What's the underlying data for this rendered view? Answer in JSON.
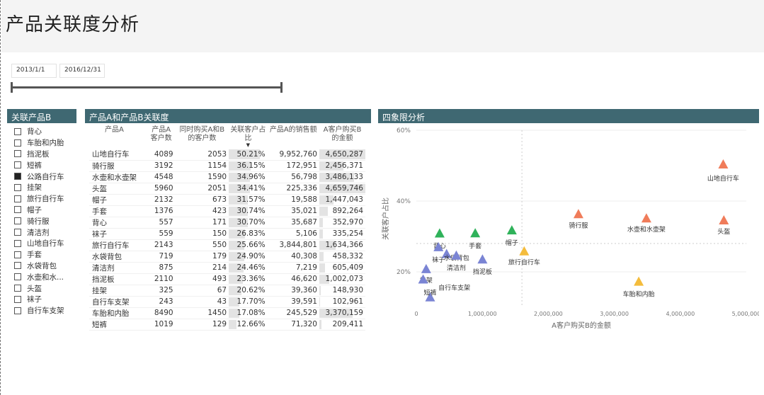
{
  "page": {
    "title": "产品关联度分析"
  },
  "date_filter": {
    "start": "2013/1/1",
    "end": "2016/12/31"
  },
  "slicer": {
    "title": "关联产品B",
    "items": [
      {
        "label": "背心",
        "checked": false
      },
      {
        "label": "车胎和内胎",
        "checked": false
      },
      {
        "label": "挡泥板",
        "checked": false
      },
      {
        "label": "短裤",
        "checked": false
      },
      {
        "label": "公路自行车",
        "checked": true
      },
      {
        "label": "挂架",
        "checked": false
      },
      {
        "label": "旅行自行车",
        "checked": false
      },
      {
        "label": "帽子",
        "checked": false
      },
      {
        "label": "骑行服",
        "checked": false
      },
      {
        "label": "清洁剂",
        "checked": false
      },
      {
        "label": "山地自行车",
        "checked": false
      },
      {
        "label": "手套",
        "checked": false
      },
      {
        "label": "水袋背包",
        "checked": false
      },
      {
        "label": "水壶和水...",
        "checked": false
      },
      {
        "label": "头盔",
        "checked": false
      },
      {
        "label": "袜子",
        "checked": false
      },
      {
        "label": "自行车支架",
        "checked": false
      }
    ]
  },
  "matrix": {
    "title": "产品A和产品B关联度",
    "columns": [
      "产品A",
      "产品A客户数",
      "同时购买A和B的客户数",
      "关联客户占比",
      "产品A的销售额",
      "A客户购买B的金额"
    ],
    "rows": [
      {
        "name": "山地自行车",
        "a": "4089",
        "ab": "2053",
        "ratio": "50.21%",
        "ratio_value": 50.21,
        "sales": "9,952,760",
        "amount": "4,650,287",
        "amount_value": 4650287
      },
      {
        "name": "骑行服",
        "a": "3192",
        "ab": "1154",
        "ratio": "36.15%",
        "ratio_value": 36.15,
        "sales": "172,951",
        "amount": "2,456,371",
        "amount_value": 2456371
      },
      {
        "name": "水壶和水壶架",
        "a": "4548",
        "ab": "1590",
        "ratio": "34.96%",
        "ratio_value": 34.96,
        "sales": "56,798",
        "amount": "3,486,133",
        "amount_value": 3486133
      },
      {
        "name": "头盔",
        "a": "5960",
        "ab": "2051",
        "ratio": "34.41%",
        "ratio_value": 34.41,
        "sales": "225,336",
        "amount": "4,659,746",
        "amount_value": 4659746
      },
      {
        "name": "帽子",
        "a": "2132",
        "ab": "673",
        "ratio": "31.57%",
        "ratio_value": 31.57,
        "sales": "19,588",
        "amount": "1,447,043",
        "amount_value": 1447043
      },
      {
        "name": "手套",
        "a": "1376",
        "ab": "423",
        "ratio": "30.74%",
        "ratio_value": 30.74,
        "sales": "35,021",
        "amount": "892,264",
        "amount_value": 892264
      },
      {
        "name": "背心",
        "a": "557",
        "ab": "171",
        "ratio": "30.70%",
        "ratio_value": 30.7,
        "sales": "35,687",
        "amount": "352,970",
        "amount_value": 352970
      },
      {
        "name": "袜子",
        "a": "559",
        "ab": "150",
        "ratio": "26.83%",
        "ratio_value": 26.83,
        "sales": "5,106",
        "amount": "335,254",
        "amount_value": 335254
      },
      {
        "name": "旅行自行车",
        "a": "2143",
        "ab": "550",
        "ratio": "25.66%",
        "ratio_value": 25.66,
        "sales": "3,844,801",
        "amount": "1,634,366",
        "amount_value": 1634366
      },
      {
        "name": "水袋背包",
        "a": "719",
        "ab": "179",
        "ratio": "24.90%",
        "ratio_value": 24.9,
        "sales": "40,308",
        "amount": "458,332",
        "amount_value": 458332
      },
      {
        "name": "清洁剂",
        "a": "875",
        "ab": "214",
        "ratio": "24.46%",
        "ratio_value": 24.46,
        "sales": "7,219",
        "amount": "605,409",
        "amount_value": 605409
      },
      {
        "name": "挡泥板",
        "a": "2110",
        "ab": "493",
        "ratio": "23.36%",
        "ratio_value": 23.36,
        "sales": "46,620",
        "amount": "1,002,073",
        "amount_value": 1002073
      },
      {
        "name": "挂架",
        "a": "325",
        "ab": "67",
        "ratio": "20.62%",
        "ratio_value": 20.62,
        "sales": "39,360",
        "amount": "148,930",
        "amount_value": 148930
      },
      {
        "name": "自行车支架",
        "a": "243",
        "ab": "43",
        "ratio": "17.70%",
        "ratio_value": 17.7,
        "sales": "39,591",
        "amount": "102,961",
        "amount_value": 102961
      },
      {
        "name": "车胎和内胎",
        "a": "8490",
        "ab": "1450",
        "ratio": "17.08%",
        "ratio_value": 17.08,
        "sales": "245,529",
        "amount": "3,370,159",
        "amount_value": 3370159
      },
      {
        "name": "短裤",
        "a": "1019",
        "ab": "129",
        "ratio": "12.66%",
        "ratio_value": 12.66,
        "sales": "71,320",
        "amount": "209,411",
        "amount_value": 209411
      }
    ]
  },
  "chart_data": {
    "type": "scatter",
    "title": "四象限分析",
    "xlabel": "A客户购买B的金额",
    "ylabel": "关联客户占比",
    "xlim": [
      0,
      5000000
    ],
    "ylim": [
      10,
      60
    ],
    "x_ticks": [
      {
        "value": 0,
        "label": "0"
      },
      {
        "value": 1000000,
        "label": "1,000,000"
      },
      {
        "value": 2000000,
        "label": "2,000,000"
      },
      {
        "value": 3000000,
        "label": "3,000,000"
      },
      {
        "value": 4000000,
        "label": "4,000,000"
      },
      {
        "value": 5000000,
        "label": "5,000,000"
      }
    ],
    "y_ticks": [
      {
        "value": 20,
        "label": "20%"
      },
      {
        "value": 40,
        "label": "40%"
      },
      {
        "value": 60,
        "label": "60%"
      }
    ],
    "reference_lines": {
      "x": 1600000,
      "y": 28
    },
    "colors": {
      "red": "#f07c5a",
      "green": "#2fb25a",
      "yellow": "#f4bc3c",
      "purple": "#7a84d4"
    },
    "points": [
      {
        "label": "山地自行车",
        "x": 4650287,
        "y": 50.21,
        "color": "red"
      },
      {
        "label": "骑行服",
        "x": 2456371,
        "y": 36.15,
        "color": "red"
      },
      {
        "label": "水壶和水壶架",
        "x": 3486133,
        "y": 34.96,
        "color": "red"
      },
      {
        "label": "头盔",
        "x": 4659746,
        "y": 34.41,
        "color": "red"
      },
      {
        "label": "帽子",
        "x": 1447043,
        "y": 31.57,
        "color": "green"
      },
      {
        "label": "手套",
        "x": 892264,
        "y": 30.74,
        "color": "green"
      },
      {
        "label": "背心",
        "x": 352970,
        "y": 30.7,
        "color": "green"
      },
      {
        "label": "旅行自行车",
        "x": 1634366,
        "y": 25.66,
        "color": "yellow"
      },
      {
        "label": "车胎和内胎",
        "x": 3370159,
        "y": 17.08,
        "color": "yellow"
      },
      {
        "label": "袜子",
        "x": 335254,
        "y": 26.83,
        "color": "purple"
      },
      {
        "label": "水袋背包",
        "x": 458332,
        "y": 24.9,
        "color": "purple"
      },
      {
        "label": "清洁剂",
        "x": 605409,
        "y": 24.46,
        "color": "purple"
      },
      {
        "label": "挡泥板",
        "x": 1002073,
        "y": 23.36,
        "color": "purple"
      },
      {
        "label": "挂架",
        "x": 148930,
        "y": 20.62,
        "color": "purple"
      },
      {
        "label": "自行车支架",
        "x": 102961,
        "y": 17.7,
        "color": "purple"
      },
      {
        "label": "短裤",
        "x": 209411,
        "y": 12.66,
        "color": "purple"
      }
    ]
  }
}
